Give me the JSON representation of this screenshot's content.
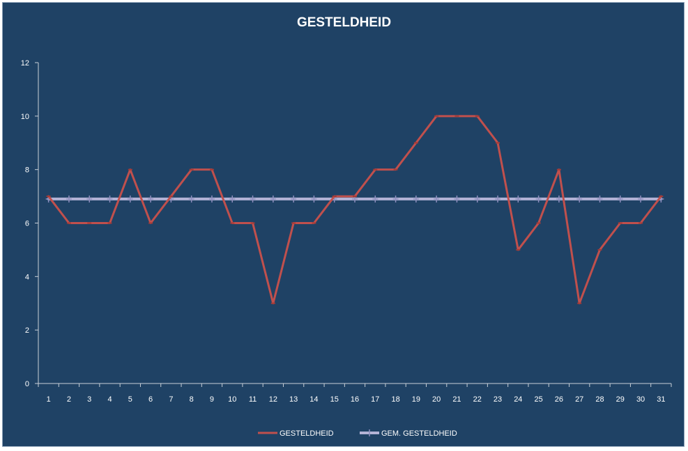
{
  "chart_data": {
    "type": "line",
    "title": "GESTELDHEID",
    "x": [
      1,
      2,
      3,
      4,
      5,
      6,
      7,
      8,
      9,
      10,
      11,
      12,
      13,
      14,
      15,
      16,
      17,
      18,
      19,
      20,
      21,
      22,
      23,
      24,
      25,
      26,
      27,
      28,
      29,
      30,
      31
    ],
    "ylim": [
      0,
      12
    ],
    "yticks": [
      0,
      2,
      4,
      6,
      8,
      10,
      12
    ],
    "grid": false,
    "legend_position": "bottom",
    "series": [
      {
        "name": "GESTELDHEID",
        "color": "#c0504d",
        "values": [
          7,
          6,
          6,
          6,
          8,
          6,
          7,
          8,
          8,
          6,
          6,
          3,
          6,
          6,
          7,
          7,
          8,
          8,
          9,
          10,
          10,
          10,
          9,
          5,
          6,
          8,
          3,
          5,
          6,
          6,
          7
        ]
      },
      {
        "name": "GEM. GESTELDHEID",
        "color": "#b3b3d6",
        "marker": "plus",
        "values": [
          6.9,
          6.9,
          6.9,
          6.9,
          6.9,
          6.9,
          6.9,
          6.9,
          6.9,
          6.9,
          6.9,
          6.9,
          6.9,
          6.9,
          6.9,
          6.9,
          6.9,
          6.9,
          6.9,
          6.9,
          6.9,
          6.9,
          6.9,
          6.9,
          6.9,
          6.9,
          6.9,
          6.9,
          6.9,
          6.9,
          6.9
        ]
      }
    ]
  }
}
